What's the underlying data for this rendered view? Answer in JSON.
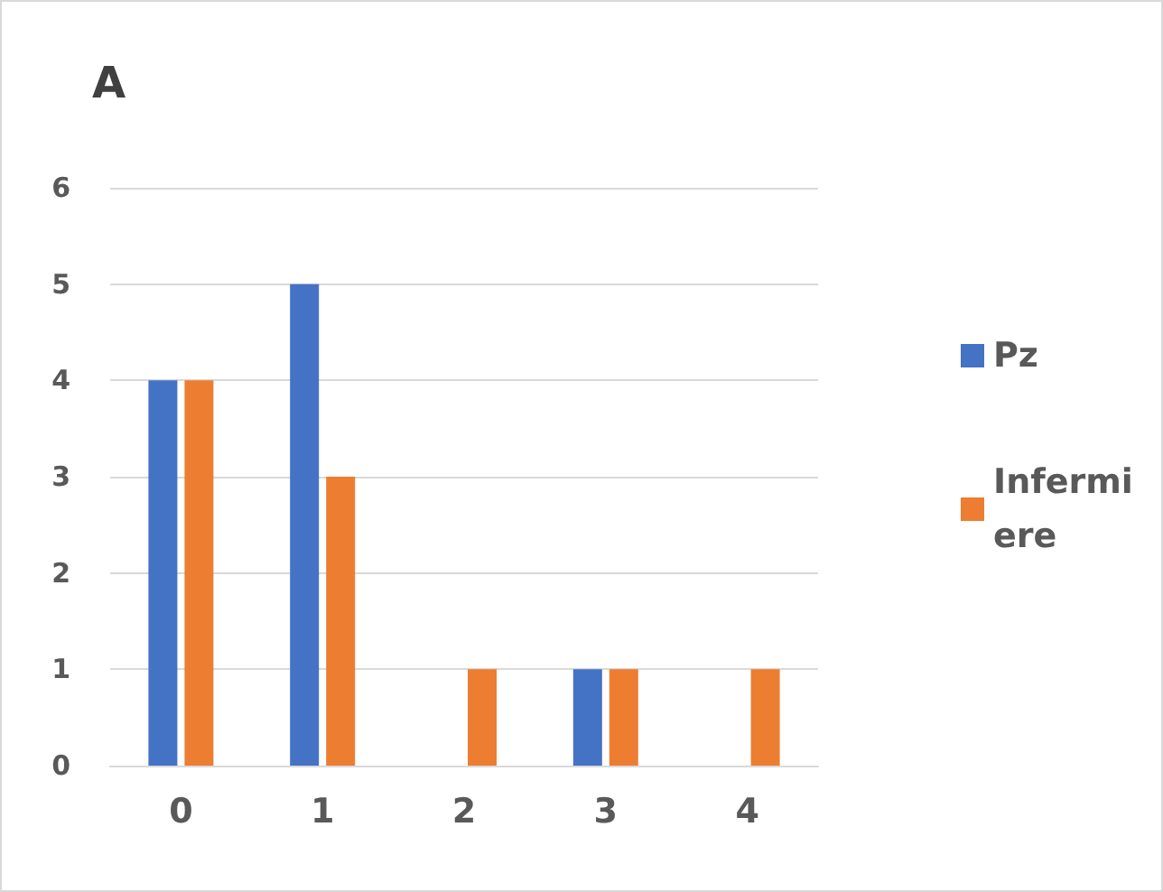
{
  "chart_data": {
    "type": "bar",
    "title": "A",
    "categories": [
      "0",
      "1",
      "2",
      "3",
      "4"
    ],
    "series": [
      {
        "name": "Pz",
        "color": "#4472c4",
        "values": [
          4,
          5,
          0,
          1,
          0
        ]
      },
      {
        "name": "Infermiere",
        "color": "#ed7d31",
        "values": [
          4,
          3,
          1,
          1,
          1
        ]
      }
    ],
    "ylim": [
      0,
      6
    ],
    "yticks": [
      0,
      1,
      2,
      3,
      4,
      5,
      6
    ],
    "grid": "y",
    "legend": "right"
  }
}
